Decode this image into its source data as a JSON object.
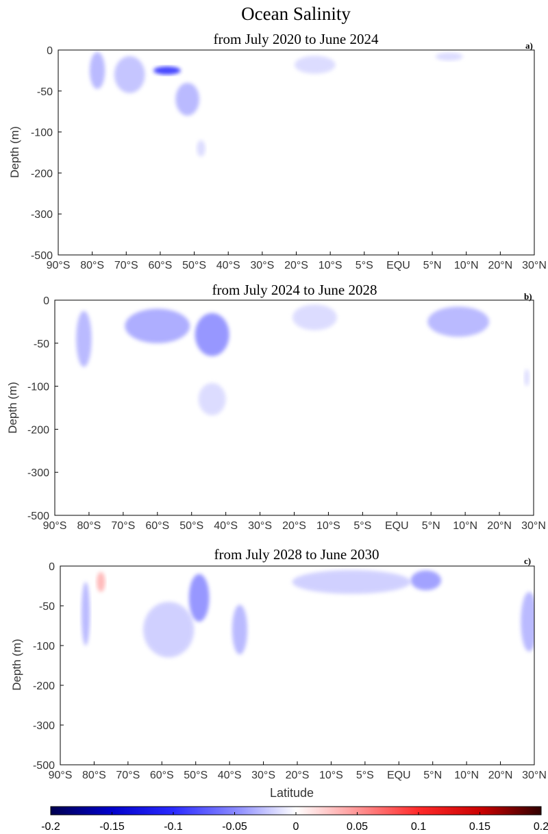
{
  "title": "Ocean Salinity",
  "xlabel": "Latitude",
  "ylabel": "Depth (m)",
  "colors": {
    "negative_max": "#000066",
    "neutral": "#ffffff",
    "positive_max": "#330000"
  },
  "chart_data": {
    "type": "heatmap",
    "x_ticks": [
      "90°S",
      "80°S",
      "70°S",
      "60°S",
      "50°S",
      "40°S",
      "30°S",
      "20°S",
      "10°S",
      "5°S",
      "EQU",
      "5°N",
      "10°N",
      "20°N",
      "30°N"
    ],
    "y_ticks": [
      0,
      -50,
      -100,
      -200,
      -300,
      -500
    ],
    "colorbar": {
      "range": [
        -0.2,
        0.2
      ],
      "ticks": [
        -0.2,
        -0.15,
        -0.1,
        -0.05,
        0,
        0.05,
        0.1,
        0.15,
        0.2
      ],
      "labels": [
        "-0.2",
        "-0.15",
        "-0.1",
        "-0.05",
        "0",
        "0.05",
        "0.1",
        "0.15",
        "0.2"
      ]
    },
    "panels": [
      {
        "letter": "a)",
        "subtitle": "from July 2020 to June 2024",
        "anomalies": [
          {
            "lat_index": 1.15,
            "depth": -25,
            "lat_width": 0.45,
            "depth_extent": 45,
            "value": -0.06
          },
          {
            "lat_index": 2.1,
            "depth": -30,
            "lat_width": 0.9,
            "depth_extent": 45,
            "value": -0.05
          },
          {
            "lat_index": 3.2,
            "depth": -25,
            "lat_width": 0.8,
            "depth_extent": 55,
            "value": -0.16
          },
          {
            "lat_index": 3.8,
            "depth": -60,
            "lat_width": 0.7,
            "depth_extent": 40,
            "value": -0.06
          },
          {
            "lat_index": 4.2,
            "depth": -140,
            "lat_width": 0.25,
            "depth_extent": 40,
            "value": -0.03
          },
          {
            "lat_index": 7.55,
            "depth": -18,
            "lat_width": 1.2,
            "depth_extent": 22,
            "value": -0.03
          },
          {
            "lat_index": 11.5,
            "depth": -8,
            "lat_width": 0.8,
            "depth_extent": 10,
            "value": -0.03
          }
        ]
      },
      {
        "letter": "b)",
        "subtitle": "from July 2024 to June 2028",
        "anomalies": [
          {
            "lat_index": 0.85,
            "depth": -45,
            "lat_width": 0.45,
            "depth_extent": 65,
            "value": -0.06
          },
          {
            "lat_index": 3.0,
            "depth": -30,
            "lat_width": 1.9,
            "depth_extent": 40,
            "value": -0.07
          },
          {
            "lat_index": 4.6,
            "depth": -40,
            "lat_width": 1.0,
            "depth_extent": 50,
            "value": -0.09
          },
          {
            "lat_index": 4.6,
            "depth": -130,
            "lat_width": 0.8,
            "depth_extent": 70,
            "value": -0.03
          },
          {
            "lat_index": 7.6,
            "depth": -20,
            "lat_width": 1.3,
            "depth_extent": 30,
            "value": -0.03
          },
          {
            "lat_index": 11.8,
            "depth": -25,
            "lat_width": 1.8,
            "depth_extent": 35,
            "value": -0.06
          },
          {
            "lat_index": 13.8,
            "depth": -90,
            "lat_width": 0.15,
            "depth_extent": 20,
            "value": -0.03
          }
        ]
      },
      {
        "letter": "c)",
        "subtitle": "from July 2028 to June 2030",
        "anomalies": [
          {
            "lat_index": 0.75,
            "depth": -60,
            "lat_width": 0.25,
            "depth_extent": 80,
            "value": -0.06
          },
          {
            "lat_index": 1.2,
            "depth": -20,
            "lat_width": 0.25,
            "depth_extent": 25,
            "value": 0.06
          },
          {
            "lat_index": 3.2,
            "depth": -80,
            "lat_width": 1.5,
            "depth_extent": 80,
            "value": -0.04
          },
          {
            "lat_index": 4.1,
            "depth": -40,
            "lat_width": 0.6,
            "depth_extent": 60,
            "value": -0.09
          },
          {
            "lat_index": 5.3,
            "depth": -80,
            "lat_width": 0.45,
            "depth_extent": 70,
            "value": -0.06
          },
          {
            "lat_index": 8.6,
            "depth": -20,
            "lat_width": 3.5,
            "depth_extent": 30,
            "value": -0.04
          },
          {
            "lat_index": 10.8,
            "depth": -18,
            "lat_width": 0.9,
            "depth_extent": 25,
            "value": -0.08
          },
          {
            "lat_index": 13.85,
            "depth": -70,
            "lat_width": 0.5,
            "depth_extent": 80,
            "value": -0.06
          }
        ]
      }
    ]
  }
}
